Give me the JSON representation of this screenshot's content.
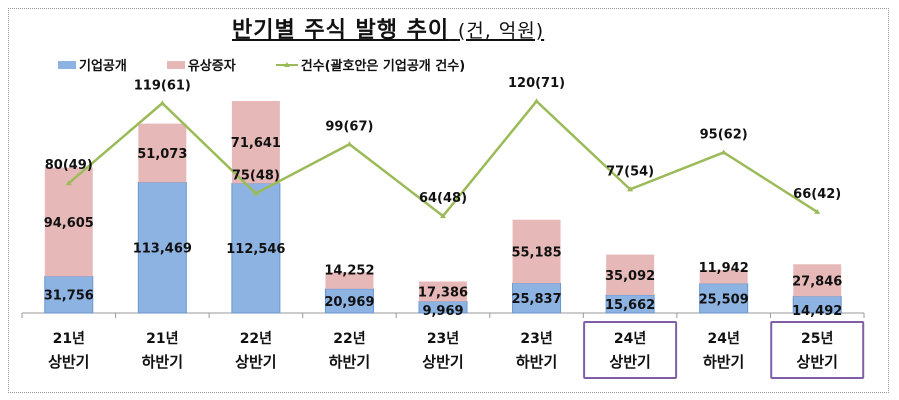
{
  "chart_data": {
    "type": "bar",
    "stacked": true,
    "title": "반기별 주식 발행 추이",
    "title_unit": "(건, 억원)",
    "categories": [
      [
        "21년",
        "상반기"
      ],
      [
        "21년",
        "하반기"
      ],
      [
        "22년",
        "상반기"
      ],
      [
        "22년",
        "하반기"
      ],
      [
        "23년",
        "상반기"
      ],
      [
        "23년",
        "하반기"
      ],
      [
        "24년",
        "상반기"
      ],
      [
        "24년",
        "하반기"
      ],
      [
        "25년",
        "상반기"
      ]
    ],
    "highlighted_categories": [
      6,
      8
    ],
    "series": [
      {
        "name": "기업공개",
        "color": "#8db3e2",
        "values": [
          31756,
          113469,
          112546,
          20969,
          9969,
          25837,
          15662,
          25509,
          14492
        ],
        "labels": [
          "31,756",
          "113,469",
          "112,546",
          "20,969",
          "9,969",
          "25,837",
          "15,662",
          "25,509",
          "14,492"
        ]
      },
      {
        "name": "유상증자",
        "color": "#e6b9b8",
        "values": [
          94605,
          51073,
          71641,
          14252,
          17386,
          55185,
          35092,
          11942,
          27846
        ],
        "labels": [
          "94,605",
          "51,073",
          "71,641",
          "14,252",
          "17,386",
          "55,185",
          "35,092",
          "11,942",
          "27,846"
        ]
      }
    ],
    "line_series": {
      "name": "건수(괄호안은 기업공개 건수)",
      "color": "#9bbb59",
      "values": [
        80,
        119,
        75,
        99,
        64,
        120,
        77,
        95,
        66
      ],
      "ipo_counts": [
        49,
        61,
        48,
        67,
        48,
        71,
        54,
        62,
        42
      ],
      "labels": [
        "80(49)",
        "119(61)",
        "75(48)",
        "99(67)",
        "64(48)",
        "120(71)",
        "77(54)",
        "95(62)",
        "66(42)"
      ]
    },
    "legend_position": "top-left",
    "grid": false,
    "highlight_color": "#7f5fa8"
  }
}
